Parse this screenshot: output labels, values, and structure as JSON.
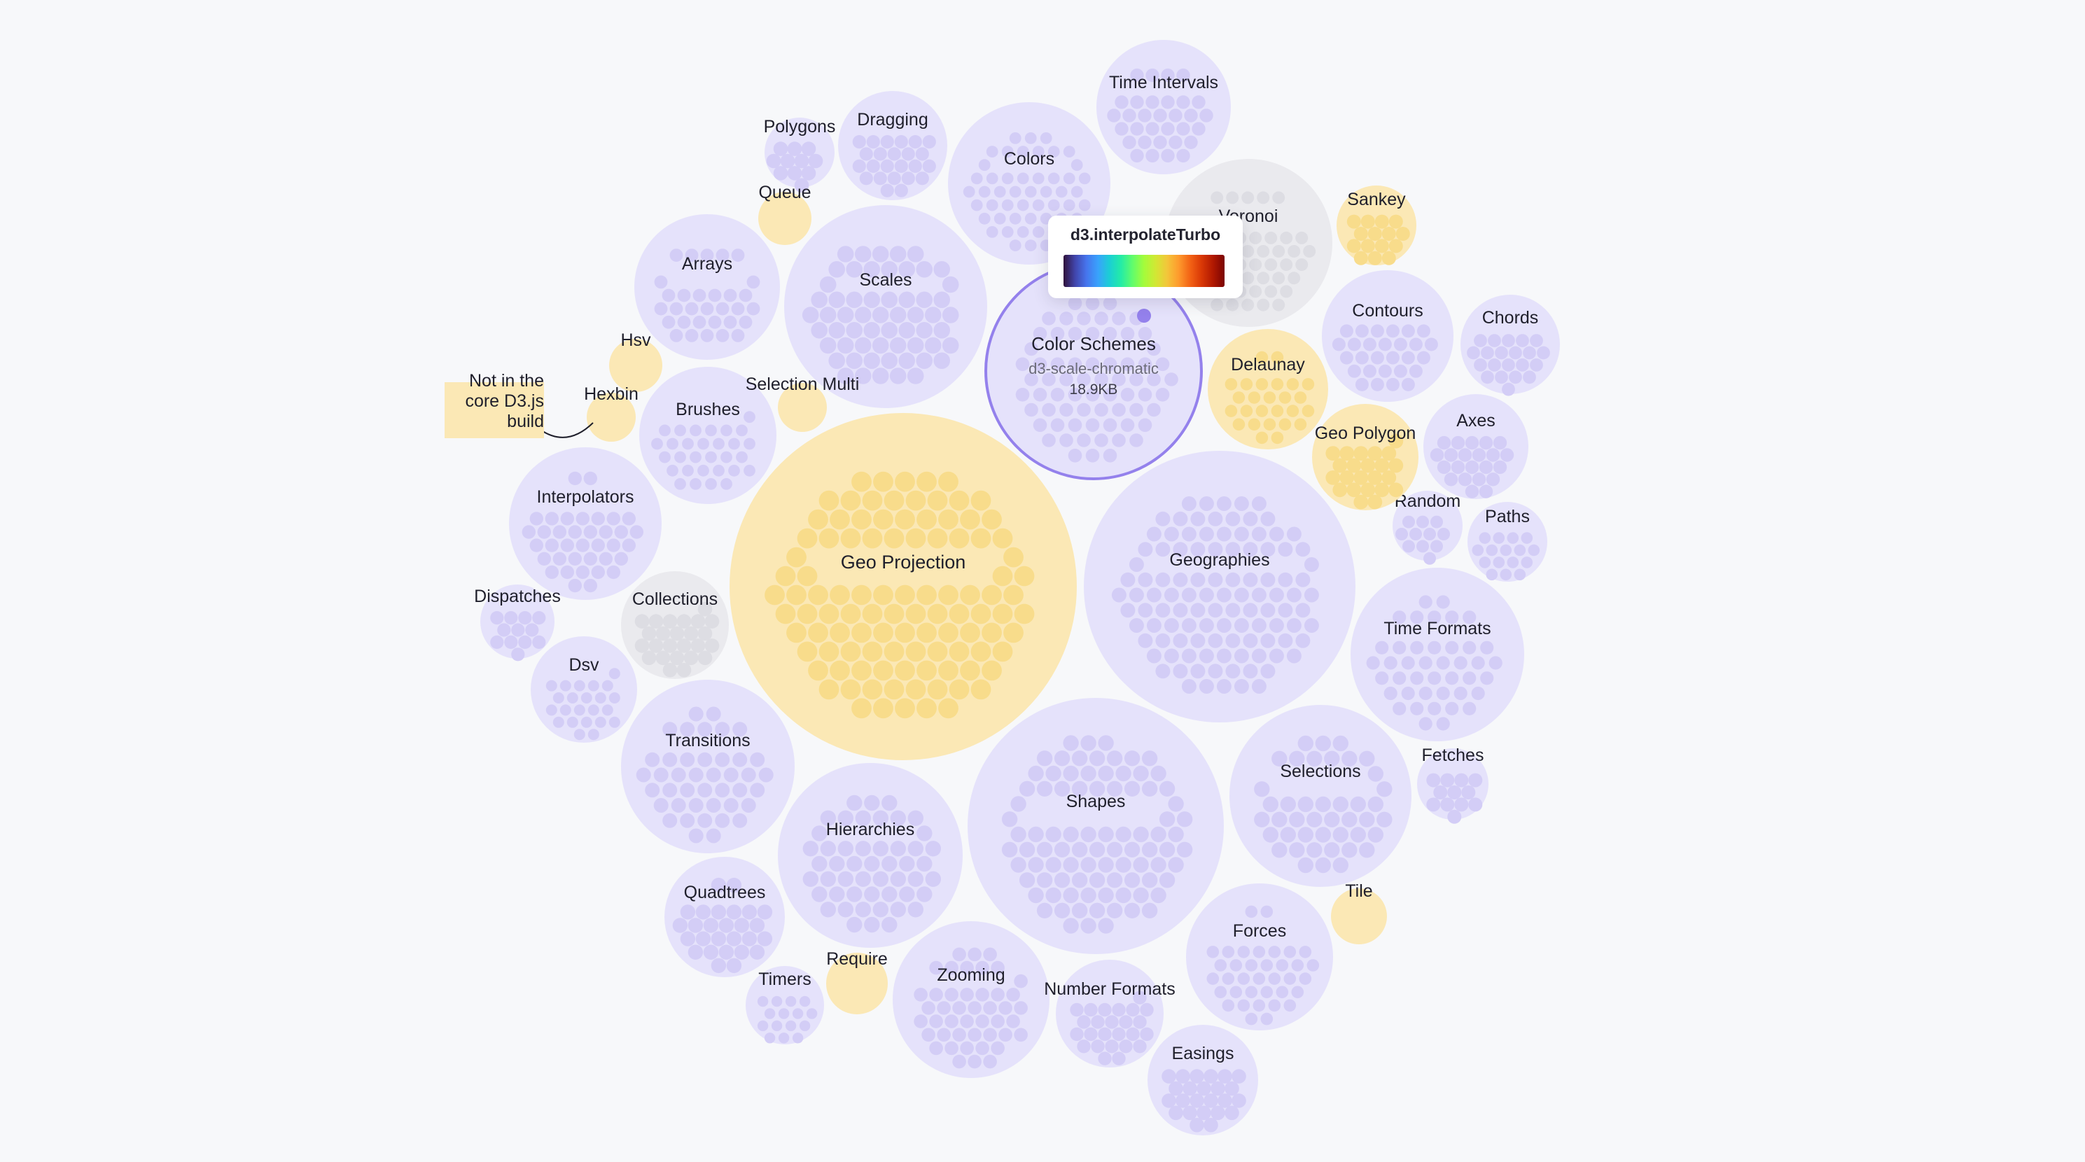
{
  "colors": {
    "background": "#f7f8fa",
    "core": "#e5e2fb",
    "core_dot": "#d3cdf6",
    "external": "#fbe8b5",
    "external_dot": "#f8dc8b",
    "inactive": "#eaeaee",
    "inactive_dot": "#dddde3",
    "highlight": "#9481ec",
    "label": "#1f1f2b",
    "subtext": "#6b6b78"
  },
  "tooltip": {
    "title": "d3.interpolateTurbo",
    "colormap": "turbo"
  },
  "note": {
    "text": "Not in the\ncore D3.js\nbuild"
  },
  "selected": {
    "name": "Color Schemes",
    "package": "d3-scale-chromatic",
    "size": "18.9KB"
  },
  "packages": [
    {
      "name": "Geo Projection",
      "group": "external"
    },
    {
      "name": "Color Schemes",
      "group": "selected"
    },
    {
      "name": "Geographies",
      "group": "core"
    },
    {
      "name": "Shapes",
      "group": "core"
    },
    {
      "name": "Scales",
      "group": "core"
    },
    {
      "name": "Colors",
      "group": "core"
    },
    {
      "name": "Voronoi",
      "group": "inactive"
    },
    {
      "name": "Time Intervals",
      "group": "core"
    },
    {
      "name": "Dragging",
      "group": "core"
    },
    {
      "name": "Polygons",
      "group": "core"
    },
    {
      "name": "Queue",
      "group": "external"
    },
    {
      "name": "Arrays",
      "group": "core"
    },
    {
      "name": "Hsv",
      "group": "external"
    },
    {
      "name": "Hexbin",
      "group": "external"
    },
    {
      "name": "Brushes",
      "group": "core"
    },
    {
      "name": "Selection Multi",
      "group": "external"
    },
    {
      "name": "Interpolators",
      "group": "core"
    },
    {
      "name": "Dispatches",
      "group": "core"
    },
    {
      "name": "Collections",
      "group": "inactive"
    },
    {
      "name": "Dsv",
      "group": "core"
    },
    {
      "name": "Transitions",
      "group": "core"
    },
    {
      "name": "Hierarchies",
      "group": "core"
    },
    {
      "name": "Quadtrees",
      "group": "core"
    },
    {
      "name": "Timers",
      "group": "core"
    },
    {
      "name": "Require",
      "group": "external"
    },
    {
      "name": "Zooming",
      "group": "core"
    },
    {
      "name": "Number Formats",
      "group": "core"
    },
    {
      "name": "Easings",
      "group": "core"
    },
    {
      "name": "Forces",
      "group": "core"
    },
    {
      "name": "Tile",
      "group": "external"
    },
    {
      "name": "Selections",
      "group": "core"
    },
    {
      "name": "Fetches",
      "group": "core"
    },
    {
      "name": "Time Formats",
      "group": "core"
    },
    {
      "name": "Paths",
      "group": "core"
    },
    {
      "name": "Random",
      "group": "core"
    },
    {
      "name": "Axes",
      "group": "core"
    },
    {
      "name": "Geo Polygon",
      "group": "external"
    },
    {
      "name": "Delaunay",
      "group": "external"
    },
    {
      "name": "Contours",
      "group": "core"
    },
    {
      "name": "Chords",
      "group": "core"
    },
    {
      "name": "Sankey",
      "group": "external"
    }
  ]
}
